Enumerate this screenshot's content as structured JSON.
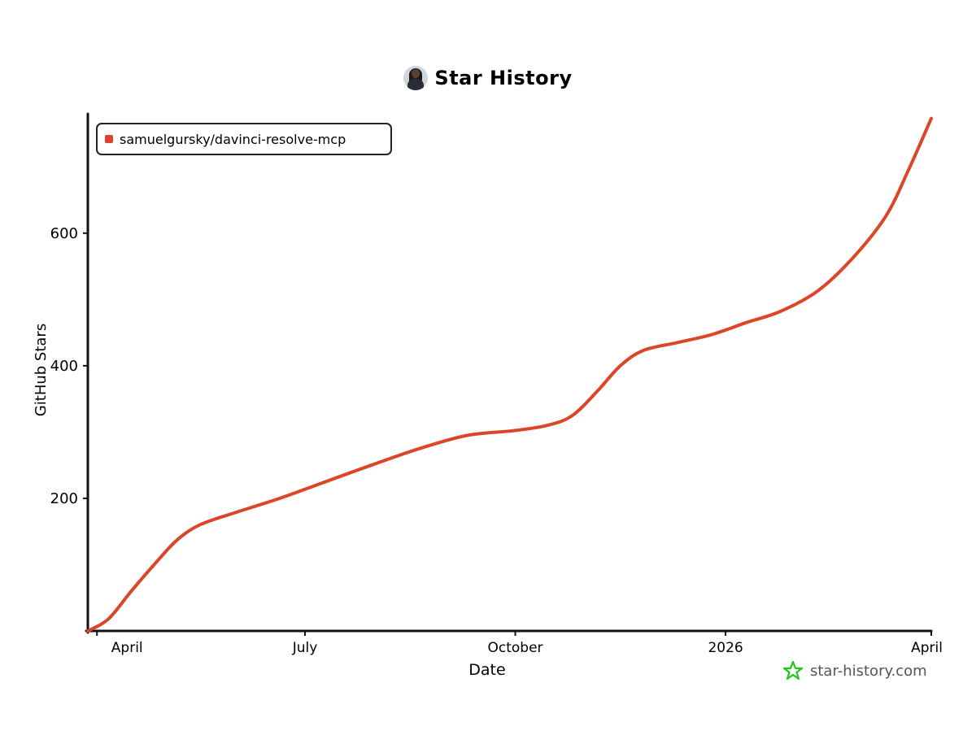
{
  "title": "Star History",
  "branding": {
    "text": "star-history.com",
    "icon": "star-icon",
    "icon_color": "#22c422"
  },
  "colors": {
    "line": "#dd4528",
    "axis": "#111111"
  },
  "chart_data": {
    "type": "line",
    "title": "Star History",
    "xlabel": "Date",
    "ylabel": "GitHub Stars",
    "x_ticks": [
      {
        "date": "2025-04-01",
        "label": "April"
      },
      {
        "date": "2025-07-01",
        "label": "July"
      },
      {
        "date": "2025-10-01",
        "label": "October"
      },
      {
        "date": "2026-01-01",
        "label": "2026"
      },
      {
        "date": "2026-04-01",
        "label": "April"
      }
    ],
    "y_ticks": [
      200,
      400,
      600
    ],
    "xlim": [
      "2025-03-28",
      "2026-04-01"
    ],
    "ylim": [
      0,
      780
    ],
    "grid": false,
    "legend_position": "top-left",
    "series": [
      {
        "name": "samuelgursky/davinci-resolve-mcp",
        "color": "#dd4528",
        "points": [
          {
            "date": "2025-03-28",
            "stars": 0
          },
          {
            "date": "2025-04-06",
            "stars": 18
          },
          {
            "date": "2025-04-16",
            "stars": 60
          },
          {
            "date": "2025-04-26",
            "stars": 100
          },
          {
            "date": "2025-05-06",
            "stars": 137
          },
          {
            "date": "2025-05-16",
            "stars": 160
          },
          {
            "date": "2025-05-31",
            "stars": 178
          },
          {
            "date": "2025-06-20",
            "stars": 200
          },
          {
            "date": "2025-07-10",
            "stars": 225
          },
          {
            "date": "2025-07-30",
            "stars": 250
          },
          {
            "date": "2025-08-20",
            "stars": 275
          },
          {
            "date": "2025-09-10",
            "stars": 295
          },
          {
            "date": "2025-09-30",
            "stars": 302
          },
          {
            "date": "2025-10-15",
            "stars": 310
          },
          {
            "date": "2025-10-26",
            "stars": 325
          },
          {
            "date": "2025-11-06",
            "stars": 362
          },
          {
            "date": "2025-11-16",
            "stars": 400
          },
          {
            "date": "2025-11-26",
            "stars": 423
          },
          {
            "date": "2025-12-11",
            "stars": 435
          },
          {
            "date": "2025-12-26",
            "stars": 447
          },
          {
            "date": "2026-01-10",
            "stars": 465
          },
          {
            "date": "2026-01-25",
            "stars": 482
          },
          {
            "date": "2026-02-10",
            "stars": 512
          },
          {
            "date": "2026-02-25",
            "stars": 560
          },
          {
            "date": "2026-03-12",
            "stars": 625
          },
          {
            "date": "2026-03-22",
            "stars": 695
          },
          {
            "date": "2026-04-01",
            "stars": 773
          }
        ]
      }
    ]
  }
}
